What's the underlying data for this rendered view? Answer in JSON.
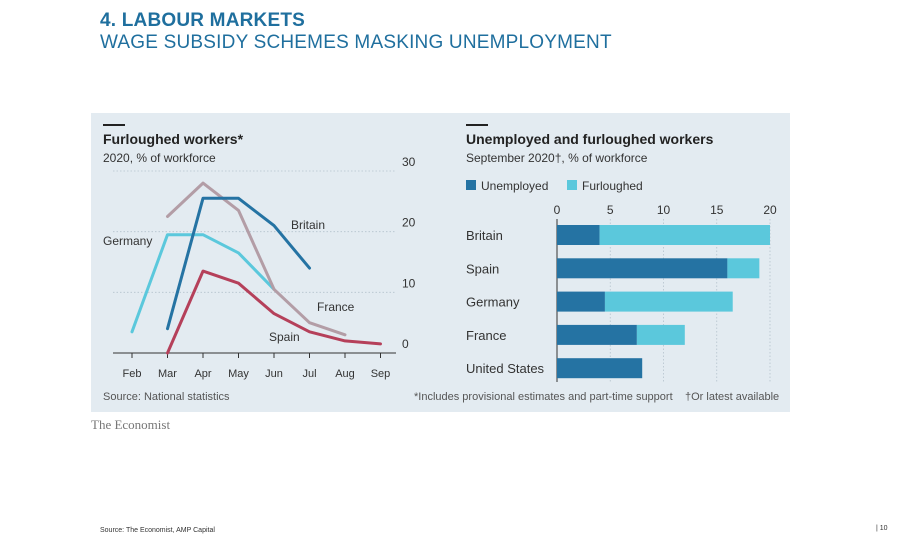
{
  "slide": {
    "title": "4. LABOUR MARKETS",
    "subtitle": "WAGE SUBSIDY SCHEMES MASKING UNEMPLOYMENT",
    "footer_source": "Source: The Economist, AMP Capital",
    "page_number": "| 10"
  },
  "brand": "The Economist",
  "colors": {
    "panel_bg": "#e3ebf1",
    "title_blue": "#1f6f9e",
    "Britain": "#2573a3",
    "Germany": "#5bc8dc",
    "France": "#b39da6",
    "Spain": "#b5405a",
    "Unemployed": "#2573a3",
    "Furloughed": "#5bc8dc"
  },
  "chart_data": [
    {
      "type": "line",
      "title": "Furloughed workers*",
      "subtitle": "2020, % of workforce",
      "x": [
        "Feb",
        "Mar",
        "Apr",
        "May",
        "Jun",
        "Jul",
        "Aug",
        "Sep"
      ],
      "ylim": [
        0,
        30
      ],
      "yticks": [
        0,
        10,
        20,
        30
      ],
      "grid": true,
      "series": [
        {
          "name": "Germany",
          "points": [
            [
              "Feb",
              3.5
            ],
            [
              "Mar",
              19.5
            ],
            [
              "Apr",
              19.5
            ],
            [
              "May",
              16.5
            ],
            [
              "Jun",
              10.5
            ]
          ]
        },
        {
          "name": "France",
          "points": [
            [
              "Mar",
              22.5
            ],
            [
              "Apr",
              28
            ],
            [
              "May",
              23.5
            ],
            [
              "Jun",
              10.5
            ],
            [
              "Jul",
              5
            ],
            [
              "Aug",
              3
            ]
          ]
        },
        {
          "name": "Britain",
          "points": [
            [
              "Mar",
              4
            ],
            [
              "Apr",
              25.5
            ],
            [
              "May",
              25.5
            ],
            [
              "Jun",
              21
            ],
            [
              "Jul",
              14
            ]
          ]
        },
        {
          "name": "Spain",
          "points": [
            [
              "Mar",
              0
            ],
            [
              "Apr",
              13.5
            ],
            [
              "May",
              11.5
            ],
            [
              "Jun",
              6.5
            ],
            [
              "Jul",
              3.5
            ],
            [
              "Aug",
              2
            ],
            [
              "Sep",
              1.5
            ]
          ]
        }
      ],
      "source": "Source: National statistics"
    },
    {
      "type": "bar",
      "orientation": "horizontal",
      "stacked": true,
      "title": "Unemployed and furloughed workers",
      "subtitle": "September 2020†, % of workforce",
      "legend": [
        "Unemployed",
        "Furloughed"
      ],
      "legend_position": "top-left",
      "categories": [
        "Britain",
        "Spain",
        "Germany",
        "France",
        "United States"
      ],
      "xlim": [
        0,
        20
      ],
      "xticks": [
        0,
        5,
        10,
        15,
        20
      ],
      "series": [
        {
          "name": "Unemployed",
          "values": [
            4,
            16,
            4.5,
            7.5,
            8
          ]
        },
        {
          "name": "Furloughed",
          "values": [
            16,
            3,
            12,
            4.5,
            0
          ]
        }
      ],
      "notes": [
        "*Includes provisional estimates and part-time support",
        "†Or latest available"
      ]
    }
  ]
}
